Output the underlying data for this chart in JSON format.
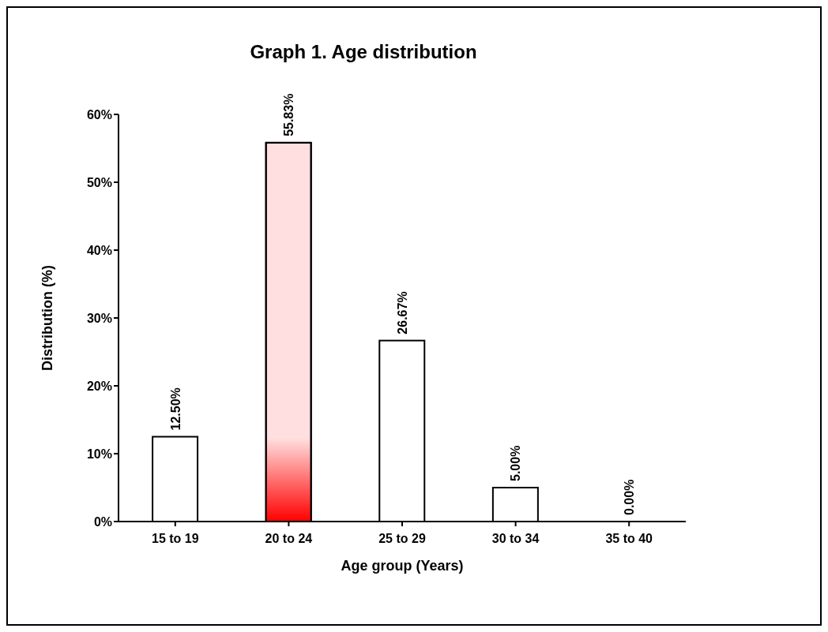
{
  "chart_data": {
    "type": "bar",
    "title": "Graph 1. Age distribution",
    "xlabel": "Age group (Years)",
    "ylabel": "Distribution (%)",
    "categories": [
      "15 to 19",
      "20 to 24",
      "25 to 29",
      "30 to 34",
      "35 to 40"
    ],
    "values": [
      12.5,
      55.83,
      26.67,
      5,
      0
    ],
    "value_labels": [
      "12.50%",
      "55.83%",
      "26.67%",
      "5.00%",
      "0.00%"
    ],
    "colors": [
      "#ffffff",
      "#ff0000",
      "#ffffff",
      "#ffffff",
      "#ffffff"
    ],
    "ylim": [
      0,
      60
    ],
    "yticks": [
      {
        "value": 0,
        "label": "0%"
      },
      {
        "value": 10,
        "label": "10%"
      },
      {
        "value": 20,
        "label": "20%"
      },
      {
        "value": 30,
        "label": "30%"
      },
      {
        "value": 40,
        "label": "40%"
      },
      {
        "value": 50,
        "label": "50%"
      },
      {
        "value": 60,
        "label": "60%"
      }
    ],
    "grid": false,
    "legend": false
  }
}
